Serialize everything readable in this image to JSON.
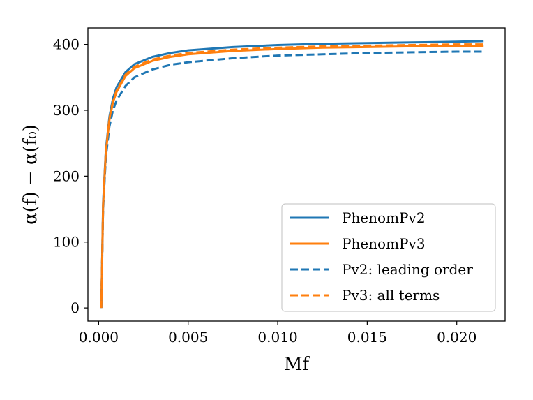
{
  "chart_data": {
    "type": "line",
    "title": "",
    "xlabel": "Mf",
    "ylabel": "α(f) − α(f₀)",
    "xlim": [
      -0.0006,
      0.0227
    ],
    "ylim": [
      -20,
      425
    ],
    "xticks": [
      0.0,
      0.005,
      0.01,
      0.015,
      0.02
    ],
    "xtick_labels": [
      "0.000",
      "0.005",
      "0.010",
      "0.015",
      "0.020"
    ],
    "yticks": [
      0,
      100,
      200,
      300,
      400
    ],
    "ytick_labels": [
      "0",
      "100",
      "200",
      "300",
      "400"
    ],
    "grid": false,
    "legend_position": "lower-right",
    "x": [
      0.00015,
      0.00025,
      0.0004,
      0.0006,
      0.0008,
      0.001,
      0.0015,
      0.002,
      0.003,
      0.004,
      0.005,
      0.0075,
      0.01,
      0.0125,
      0.015,
      0.0175,
      0.02,
      0.0215
    ],
    "series": [
      {
        "name": "PhenomPv2",
        "color": "#1f77b4",
        "dash": "solid",
        "values": [
          0,
          160,
          240,
          290,
          318,
          335,
          358,
          370,
          381,
          387,
          391,
          396,
          399,
          401,
          402,
          403,
          404,
          405
        ]
      },
      {
        "name": "PhenomPv3",
        "color": "#ff7f0e",
        "dash": "solid",
        "values": [
          0,
          155,
          235,
          285,
          312,
          328,
          352,
          364,
          375,
          381,
          385,
          390,
          393,
          395,
          396,
          397,
          398,
          398
        ]
      },
      {
        "name": "Pv2: leading order",
        "color": "#1f77b4",
        "dash": "dashed",
        "values": [
          0,
          150,
          228,
          275,
          300,
          315,
          337,
          350,
          362,
          369,
          373,
          379,
          383,
          385,
          387,
          388,
          389,
          389
        ]
      },
      {
        "name": "Pv3: all terms",
        "color": "#ff7f0e",
        "dash": "dashed",
        "values": [
          0,
          156,
          237,
          287,
          314,
          330,
          354,
          366,
          377,
          383,
          387,
          392,
          395,
          397,
          398,
          399,
          400,
          400
        ]
      }
    ]
  }
}
